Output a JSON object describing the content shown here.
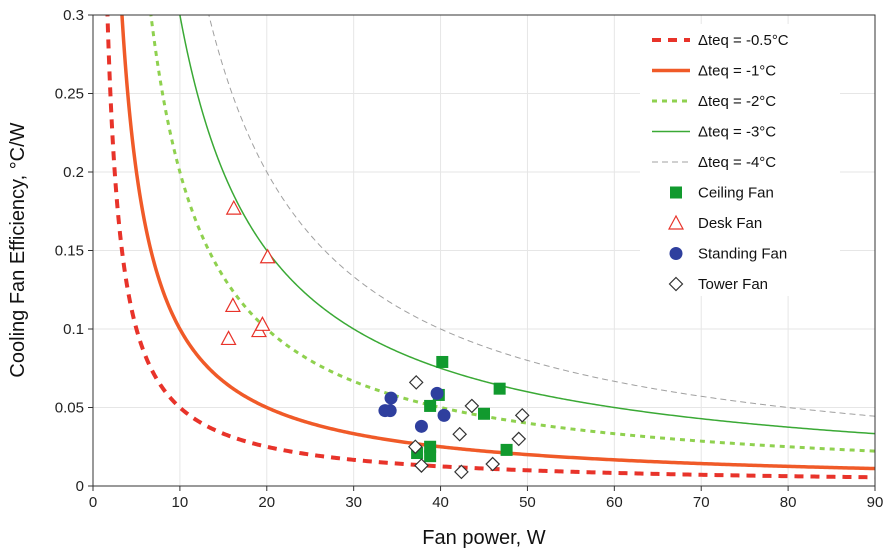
{
  "chart_data": {
    "type": "line",
    "title": "",
    "xlabel": "Fan power, W",
    "ylabel": "Cooling Fan Efficiency, °C/W",
    "xlim": [
      0,
      90
    ],
    "ylim": [
      0,
      0.3
    ],
    "xticks": [
      0,
      10,
      20,
      30,
      40,
      50,
      60,
      70,
      80,
      90
    ],
    "xtick_labels": [
      "0",
      "10",
      "20",
      "30",
      "40",
      "50",
      "60",
      "70",
      "80",
      "90"
    ],
    "yticks": [
      0,
      0.05,
      0.1,
      0.15,
      0.2,
      0.25,
      0.3
    ],
    "ytick_labels": [
      "0",
      "0.05",
      "0.1",
      "0.15",
      "0.2",
      "0.25",
      "0.3"
    ],
    "grid": true,
    "legend_position": "top-right",
    "curves": [
      {
        "name": "Δteq = -0.5°C",
        "dteq": 0.5,
        "color": "#e8332a",
        "style": "dashed-thick"
      },
      {
        "name": "Δteq = -1°C",
        "dteq": 1,
        "color": "#f05a28",
        "style": "solid-thick"
      },
      {
        "name": "Δteq = -2°C",
        "dteq": 2,
        "color": "#8fd14f",
        "style": "dotted"
      },
      {
        "name": "Δteq = -3°C",
        "dteq": 3,
        "color": "#3aa935",
        "style": "solid-thin"
      },
      {
        "name": "Δteq = -4°C",
        "dteq": 4,
        "color": "#a0a0a0",
        "style": "dashed-thin"
      }
    ],
    "scatter_series": [
      {
        "name": "Ceiling Fan",
        "marker": "square",
        "color": "#119a2e",
        "points": [
          [
            37.3,
            0.021
          ],
          [
            38.8,
            0.025
          ],
          [
            38.8,
            0.019
          ],
          [
            38.8,
            0.051
          ],
          [
            39.8,
            0.058
          ],
          [
            40.2,
            0.079
          ],
          [
            45.0,
            0.046
          ],
          [
            46.8,
            0.062
          ],
          [
            47.6,
            0.023
          ]
        ]
      },
      {
        "name": "Desk Fan",
        "marker": "triangle-open",
        "color": "#e8332a",
        "points": [
          [
            15.6,
            0.094
          ],
          [
            16.1,
            0.115
          ],
          [
            16.2,
            0.177
          ],
          [
            19.1,
            0.099
          ],
          [
            19.5,
            0.103
          ],
          [
            20.1,
            0.146
          ]
        ]
      },
      {
        "name": "Standing Fan",
        "marker": "circle",
        "color": "#2f3f9e",
        "points": [
          [
            33.6,
            0.048
          ],
          [
            34.2,
            0.048
          ],
          [
            34.3,
            0.056
          ],
          [
            37.8,
            0.038
          ],
          [
            39.6,
            0.059
          ],
          [
            40.4,
            0.045
          ]
        ]
      },
      {
        "name": "Tower Fan",
        "marker": "diamond-open",
        "color": "#333333",
        "points": [
          [
            37.1,
            0.025
          ],
          [
            37.2,
            0.066
          ],
          [
            37.8,
            0.013
          ],
          [
            42.2,
            0.033
          ],
          [
            42.4,
            0.009
          ],
          [
            43.6,
            0.051
          ],
          [
            46.0,
            0.014
          ],
          [
            49.0,
            0.03
          ],
          [
            49.4,
            0.045
          ]
        ]
      }
    ]
  }
}
